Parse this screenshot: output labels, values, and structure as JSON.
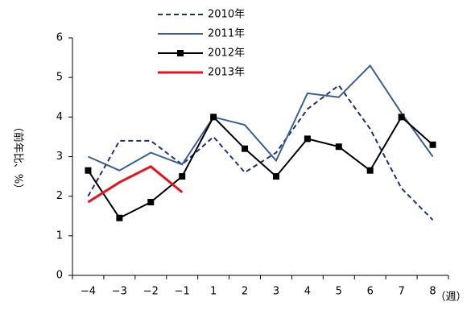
{
  "chart_data": {
    "type": "line",
    "y_label": "（前年比、%）",
    "x_label": "（週）",
    "categories": [
      "−4",
      "−3",
      "−2",
      "−1",
      "1",
      "2",
      "3",
      "4",
      "5",
      "6",
      "7",
      "8"
    ],
    "series": [
      {
        "name": "2010年",
        "color": "#1f2f7a",
        "dashed": true,
        "marker": null,
        "values": [
          2.0,
          3.4,
          3.4,
          2.8,
          3.5,
          2.6,
          3.1,
          4.2,
          4.8,
          3.7,
          2.2,
          1.4
        ]
      },
      {
        "name": "2011年",
        "color": "#3d5f8f",
        "dashed": false,
        "marker": null,
        "values": [
          3.0,
          2.65,
          3.1,
          2.8,
          4.0,
          3.8,
          2.9,
          4.6,
          4.5,
          5.3,
          4.1,
          3.0
        ]
      },
      {
        "name": "2012年",
        "color": "#000000",
        "dashed": false,
        "marker": "square",
        "values": [
          2.65,
          1.45,
          1.85,
          2.5,
          4.0,
          3.2,
          2.5,
          3.45,
          3.25,
          2.65,
          4.0,
          3.3
        ]
      },
      {
        "name": "2013年",
        "color": "#e8141c",
        "dashed": false,
        "marker": null,
        "width": 3,
        "values": [
          1.85,
          2.35,
          2.75,
          2.1,
          null,
          null,
          null,
          null,
          null,
          null,
          null,
          null
        ]
      }
    ],
    "ylim": [
      0,
      6
    ],
    "yticks": [
      0,
      1,
      2,
      3,
      4,
      5,
      6
    ],
    "grid": false,
    "legend": "top"
  }
}
